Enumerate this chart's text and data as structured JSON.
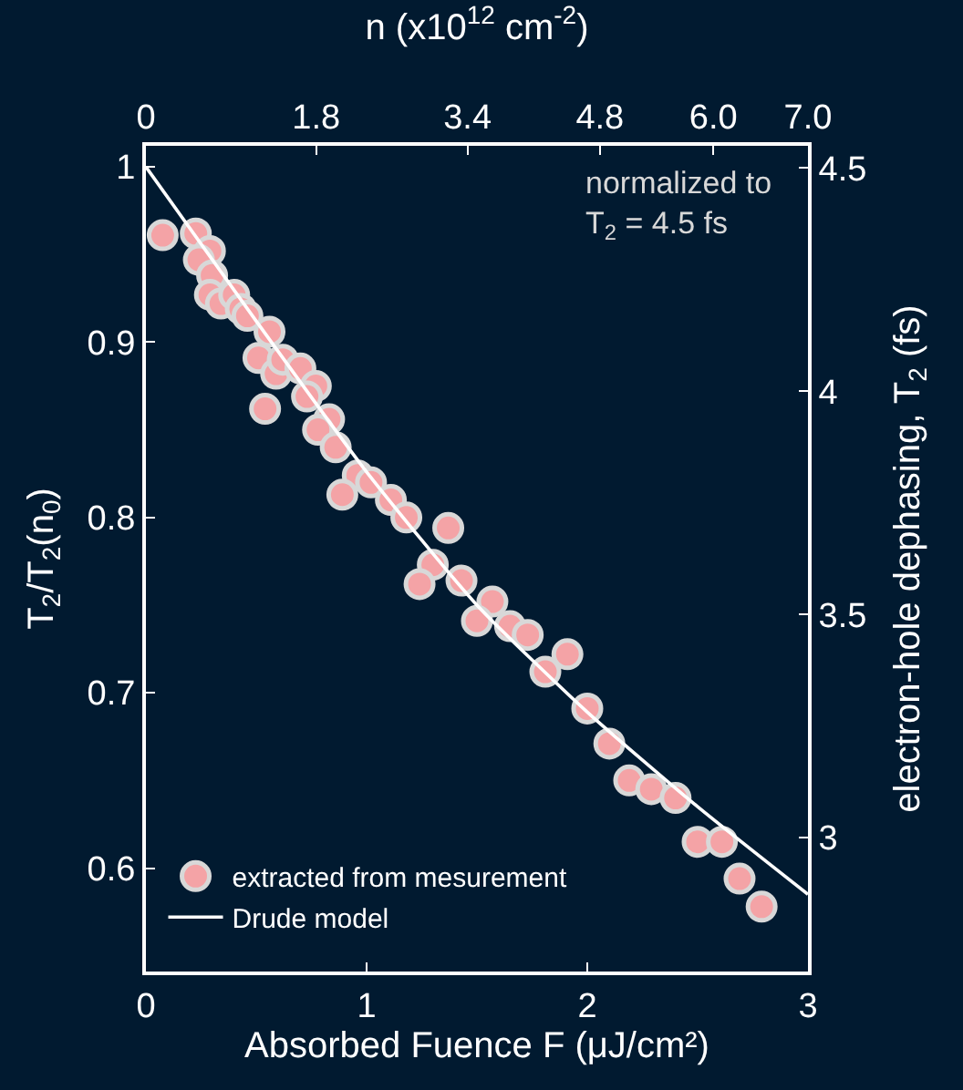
{
  "chart_data": {
    "type": "scatter",
    "xlabel": "Absorbed Fuence F (μJ/cm²)",
    "x2label": "n (x10$^{12}$ cm$^{-2}$)",
    "ylabel": "T$_{2}$/T$_{2}$(n$_{0}$)",
    "y2label": "electron-hole dephasing, T$_{2}$ (fs)",
    "annotations": [
      "normalized to\nT$_{2}$ = 4.5 fs"
    ],
    "xlim": [
      0,
      3
    ],
    "xticks": [
      0,
      1,
      2,
      3
    ],
    "x2lim": [
      0,
      7.0
    ],
    "x2ticks": [
      0,
      1.8,
      3.4,
      4.8,
      {
        "value": 6,
        "label": "6.0"
      },
      {
        "value": 7,
        "label": "7.0"
      }
    ],
    "ylim": [
      0.541,
      1.012
    ],
    "yticks": [
      0.6,
      0.7,
      0.8,
      0.9,
      1
    ],
    "y2lim": [
      2.7,
      4.55
    ],
    "y2ticks": [
      3,
      3.5,
      4,
      4.5
    ],
    "grid": false,
    "legend": "bottom left",
    "series": [
      {
        "name": "extracted from mesurement",
        "marker": "circle",
        "color": "#f4a3a6",
        "x": [
          0.076,
          0.226,
          0.29,
          0.24,
          0.3,
          0.29,
          0.34,
          0.4,
          0.43,
          0.46,
          0.56,
          0.51,
          0.59,
          0.62,
          0.7,
          0.77,
          0.73,
          0.54,
          0.83,
          0.78,
          0.86,
          0.96,
          1.02,
          0.89,
          1.11,
          1.18,
          1.37,
          1.3,
          1.24,
          1.43,
          1.57,
          1.5,
          1.65,
          1.73,
          1.91,
          1.81,
          2.0,
          2.1,
          2.19,
          2.29,
          2.4,
          2.5,
          2.61,
          2.69,
          2.79
        ],
        "values": [
          0.961,
          0.962,
          0.952,
          0.947,
          0.938,
          0.927,
          0.922,
          0.927,
          0.919,
          0.915,
          0.906,
          0.891,
          0.882,
          0.89,
          0.885,
          0.875,
          0.869,
          0.862,
          0.856,
          0.85,
          0.84,
          0.824,
          0.82,
          0.813,
          0.81,
          0.8,
          0.794,
          0.773,
          0.762,
          0.764,
          0.752,
          0.741,
          0.738,
          0.733,
          0.722,
          0.712,
          0.691,
          0.671,
          0.65,
          0.645,
          0.64,
          0.615,
          0.615,
          0.594,
          0.578
        ]
      },
      {
        "name": "Drude model",
        "type": "line",
        "line_style": "solid",
        "color": "#ffffff",
        "x": [
          0,
          0.5,
          1,
          1.5,
          2,
          2.5,
          3
        ],
        "values": [
          1,
          0.912,
          0.826,
          0.75,
          0.689,
          0.635,
          0.585
        ]
      }
    ]
  }
}
